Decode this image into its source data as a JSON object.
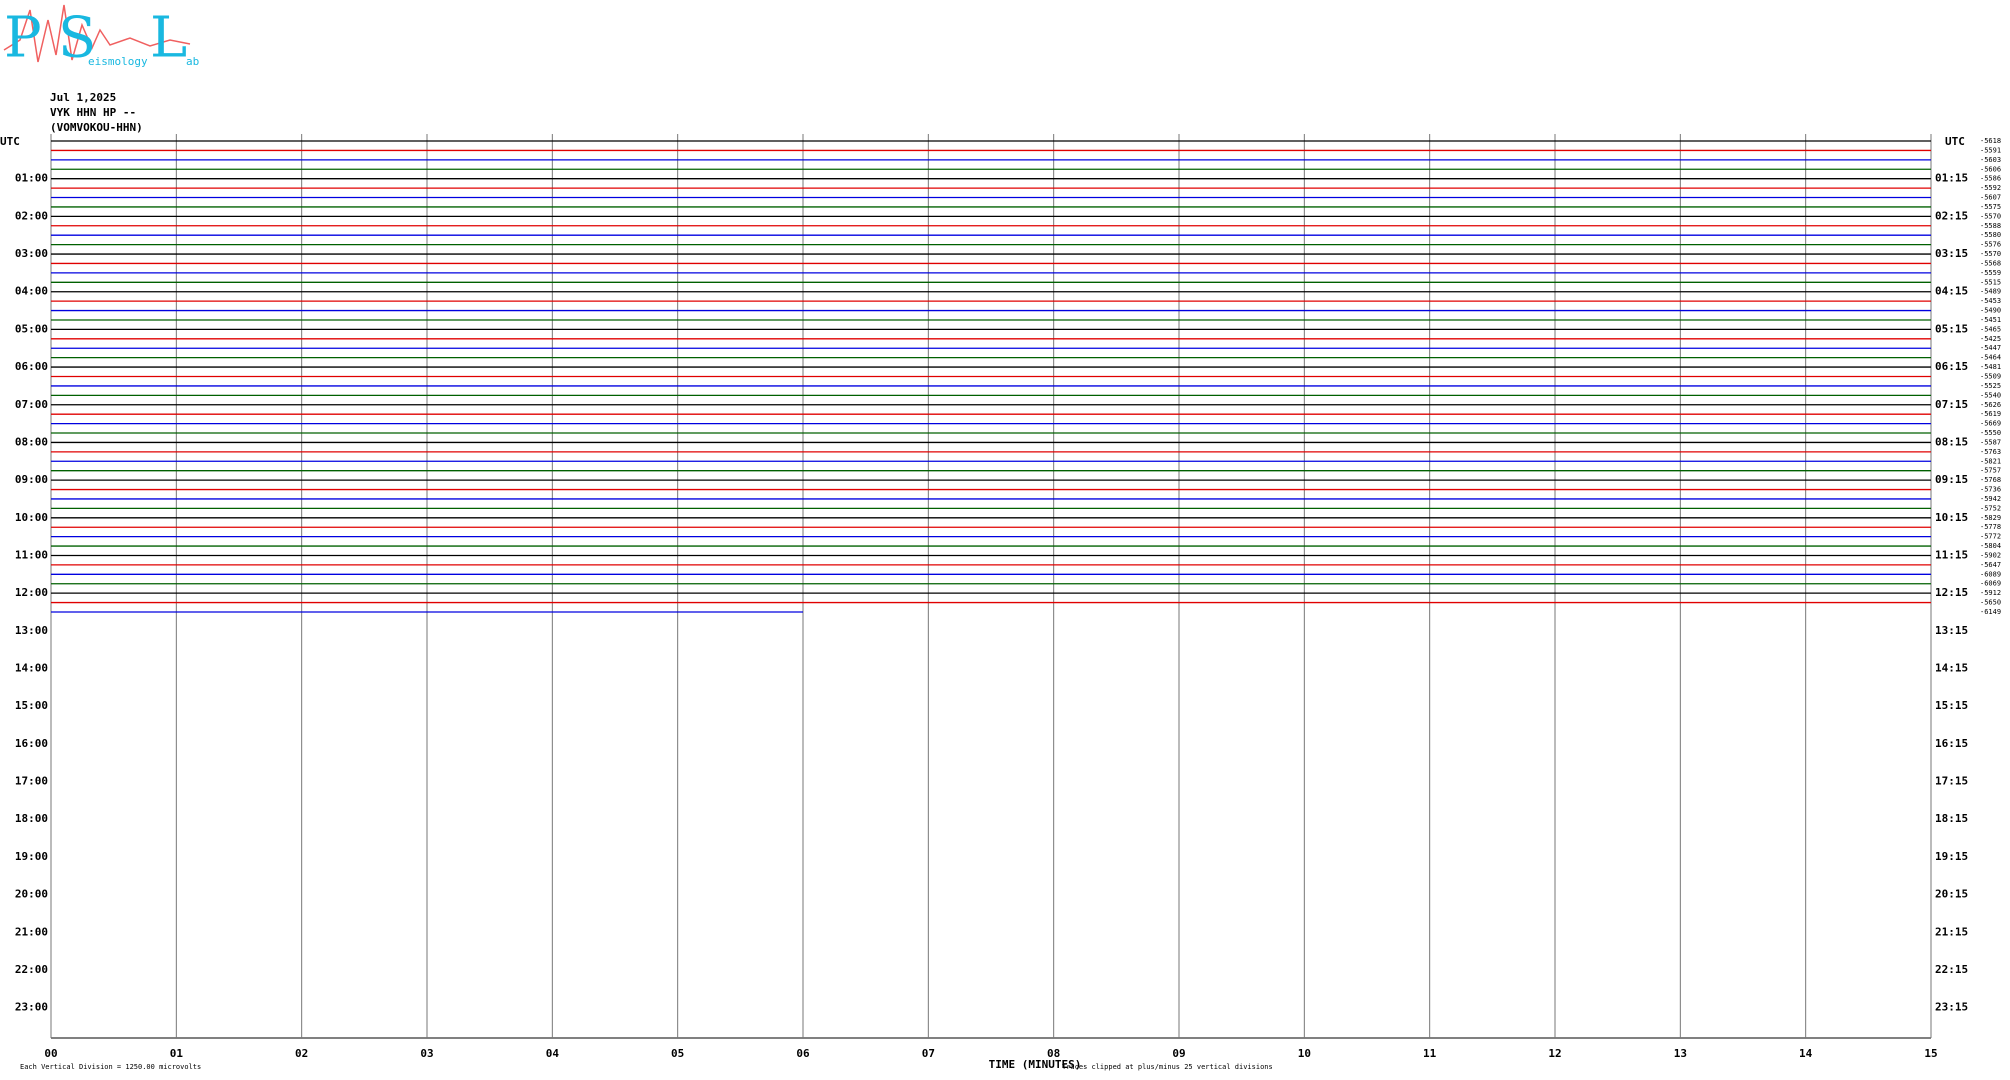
{
  "logo": {
    "letters": [
      "P",
      "S",
      "L"
    ],
    "words": [
      "eismology",
      "ab"
    ]
  },
  "chart_data": {
    "type": "helicorder",
    "header": [
      "Jul 1,2025",
      "VYK HHN HP --",
      "(VOMVOKOU-HHN)"
    ],
    "corner_left": "UTC",
    "corner_right": "UTC",
    "xlabel": "TIME (MINUTES)",
    "scale_note": "Each Vertical Division = 1250.00 microvolts",
    "clip_note": "Traces clipped at plus/minus 25 vertical divisions",
    "xlim": [
      0,
      15
    ],
    "xticks": [
      {
        "value": 0,
        "label": "00"
      },
      {
        "value": 1,
        "label": "01"
      },
      {
        "value": 2,
        "label": "02"
      },
      {
        "value": 3,
        "label": "03"
      },
      {
        "value": 4,
        "label": "04"
      },
      {
        "value": 5,
        "label": "05"
      },
      {
        "value": 6,
        "label": "06"
      },
      {
        "value": 7,
        "label": "07"
      },
      {
        "value": 8,
        "label": "08"
      },
      {
        "value": 9,
        "label": "09"
      },
      {
        "value": 10,
        "label": "10"
      },
      {
        "value": 11,
        "label": "11"
      },
      {
        "value": 12,
        "label": "12"
      },
      {
        "value": 13,
        "label": "13"
      },
      {
        "value": 14,
        "label": "14"
      },
      {
        "value": 15,
        "label": "15"
      }
    ],
    "left_times": [
      "01:00",
      "02:00",
      "03:00",
      "04:00",
      "05:00",
      "06:00",
      "07:00",
      "08:00",
      "09:00",
      "10:00",
      "11:00",
      "12:00",
      "13:00",
      "14:00",
      "15:00",
      "16:00",
      "17:00",
      "18:00",
      "19:00",
      "20:00",
      "21:00",
      "22:00",
      "23:00"
    ],
    "right_times": [
      "01:15",
      "02:15",
      "03:15",
      "04:15",
      "05:15",
      "06:15",
      "07:15",
      "08:15",
      "09:15",
      "10:15",
      "11:15",
      "12:15",
      "13:15",
      "14:15",
      "15:15",
      "16:15",
      "17:15",
      "18:15",
      "19:15",
      "20:15",
      "21:15",
      "22:15",
      "23:15"
    ],
    "trace_colors": [
      "#000000",
      "#e00000",
      "#0000e0",
      "#006000"
    ],
    "last_trace_end": 6,
    "offsets": [
      "-5618",
      "-5591",
      "-5603",
      "-5606",
      "-5586",
      "-5592",
      "-5607",
      "-5575",
      "-5570",
      "-5588",
      "-5580",
      "-5576",
      "-5570",
      "-5568",
      "-5559",
      "-5515",
      "-5489",
      "-5453",
      "-5490",
      "-5451",
      "-5465",
      "-5425",
      "-5447",
      "-5464",
      "-5481",
      "-5509",
      "-5525",
      "-5540",
      "-5626",
      "-5619",
      "-5669",
      "-5550",
      "-5587",
      "-5763",
      "-5821",
      "-5757",
      "-5768",
      "-5736",
      "-5942",
      "-5752",
      "-5829",
      "-5778",
      "-5772",
      "-5804",
      "-5902",
      "-5647",
      "-6089",
      "-6069",
      "-5912",
      "-5650",
      "-6149"
    ]
  }
}
